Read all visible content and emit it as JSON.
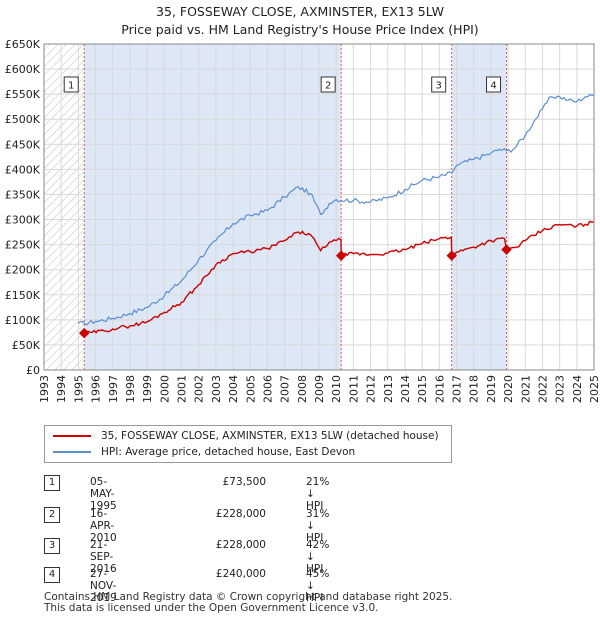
{
  "title_line1": "35, FOSSEWAY CLOSE, AXMINSTER, EX13 5LW",
  "title_line2": "Price paid vs. HM Land Registry's House Price Index (HPI)",
  "colors": {
    "property": "#cc0000",
    "hpi": "#5b8fd0",
    "band": "#dde7f6",
    "marker_line": "#e05a5a"
  },
  "legend": {
    "property_label": "35, FOSSEWAY CLOSE, AXMINSTER, EX13 5LW (detached house)",
    "hpi_label": "HPI: Average price, detached house, East Devon"
  },
  "transactions": [
    {
      "num": "1",
      "date": "05-MAY-1995",
      "price": "£73,500",
      "hpi": "21% ↓ HPI"
    },
    {
      "num": "2",
      "date": "16-APR-2010",
      "price": "£228,000",
      "hpi": "31% ↓ HPI"
    },
    {
      "num": "3",
      "date": "21-SEP-2016",
      "price": "£228,000",
      "hpi": "42% ↓ HPI"
    },
    {
      "num": "4",
      "date": "27-NOV-2019",
      "price": "£240,000",
      "hpi": "45% ↓ HPI"
    }
  ],
  "footer": {
    "line1": "Contains HM Land Registry data © Crown copyright and database right 2025.",
    "line2": "This data is licensed under the Open Government Licence v3.0."
  },
  "chart_data": {
    "type": "line",
    "title": "35, FOSSEWAY CLOSE, AXMINSTER, EX13 5LW — Price paid vs. HM Land Registry's House Price Index (HPI)",
    "xlabel": "",
    "ylabel": "",
    "xlim": [
      1993,
      2025
    ],
    "ylim": [
      0,
      650000
    ],
    "y_ticks": [
      0,
      50000,
      100000,
      150000,
      200000,
      250000,
      300000,
      350000,
      400000,
      450000,
      500000,
      550000,
      600000,
      650000
    ],
    "y_tick_labels": [
      "£0",
      "£50K",
      "£100K",
      "£150K",
      "£200K",
      "£250K",
      "£300K",
      "£350K",
      "£400K",
      "£450K",
      "£500K",
      "£550K",
      "£600K",
      "£650K"
    ],
    "x_ticks": [
      1993,
      1994,
      1995,
      1996,
      1997,
      1998,
      1999,
      2000,
      2001,
      2002,
      2003,
      2004,
      2005,
      2006,
      2007,
      2008,
      2009,
      2010,
      2011,
      2012,
      2013,
      2014,
      2015,
      2016,
      2017,
      2018,
      2019,
      2020,
      2021,
      2022,
      2023,
      2024,
      2025
    ],
    "x_tick_labels": [
      "1993",
      "1994",
      "1995",
      "1996",
      "1997",
      "1998",
      "1999",
      "2000",
      "2001",
      "2002",
      "2003",
      "2004",
      "2005",
      "2006",
      "2007",
      "2008",
      "2009",
      "2010",
      "2011",
      "2012",
      "2013",
      "2014",
      "2015",
      "2016",
      "2017",
      "2018",
      "2019",
      "2020",
      "2021",
      "2022",
      "2023",
      "2024",
      "2025"
    ],
    "hatched_until": 1995.3,
    "highlight_bands": [
      [
        1995.34,
        2010.29
      ],
      [
        2016.72,
        2019.91
      ]
    ],
    "sale_markers": [
      {
        "label": "1",
        "x": 1995.34,
        "y": 73500
      },
      {
        "label": "2",
        "x": 2010.29,
        "y": 228000
      },
      {
        "label": "3",
        "x": 2016.72,
        "y": 228000
      },
      {
        "label": "4",
        "x": 2019.91,
        "y": 240000
      }
    ],
    "series": [
      {
        "name": "35, FOSSEWAY CLOSE, AXMINSTER, EX13 5LW (detached house)",
        "x": [
          1995.34,
          1995.8,
          1996.5,
          1997,
          1998,
          1999,
          2000,
          2001,
          2002,
          2003,
          2004,
          2005,
          2006,
          2007,
          2007.8,
          2008.5,
          2009.1,
          2009.6,
          2010.0,
          2010.28,
          2010.29,
          2011,
          2012,
          2013,
          2014,
          2015,
          2016,
          2016.7,
          2016.72,
          2017,
          2018,
          2019,
          2019.8,
          2019.91,
          2020.5,
          2021,
          2022,
          2023,
          2024,
          2025
        ],
        "y": [
          73500,
          75000,
          78000,
          82000,
          88000,
          96000,
          115000,
          135000,
          170000,
          210000,
          232000,
          236000,
          242000,
          258000,
          275000,
          270000,
          238000,
          255000,
          258000,
          260000,
          228000,
          232000,
          230000,
          233000,
          240000,
          252000,
          262000,
          265000,
          228000,
          235000,
          245000,
          258000,
          262000,
          240000,
          245000,
          258000,
          278000,
          290000,
          287000,
          295000
        ]
      },
      {
        "name": "HPI: Average price, detached house, East Devon",
        "x": [
          1995.0,
          1995.34,
          1996,
          1997,
          1998,
          1999,
          2000,
          2001,
          2002,
          2003,
          2004,
          2005,
          2006,
          2007,
          2007.8,
          2008.5,
          2009.1,
          2009.6,
          2010,
          2011,
          2012,
          2013,
          2014,
          2015,
          2016,
          2016.72,
          2017,
          2018,
          2019,
          2019.5,
          2019.91,
          2020.3,
          2021,
          2021.5,
          2022,
          2022.5,
          2023,
          2023.5,
          2024,
          2024.5,
          2025
        ],
        "y": [
          93000,
          93000,
          97000,
          103000,
          113000,
          125000,
          148000,
          178000,
          220000,
          258000,
          292000,
          308000,
          318000,
          345000,
          365000,
          352000,
          310000,
          332000,
          340000,
          338000,
          335000,
          343000,
          360000,
          378000,
          385000,
          393000,
          408000,
          420000,
          432000,
          440000,
          437000,
          440000,
          468000,
          495000,
          520000,
          545000,
          545000,
          538000,
          535000,
          545000,
          548000
        ]
      }
    ]
  }
}
